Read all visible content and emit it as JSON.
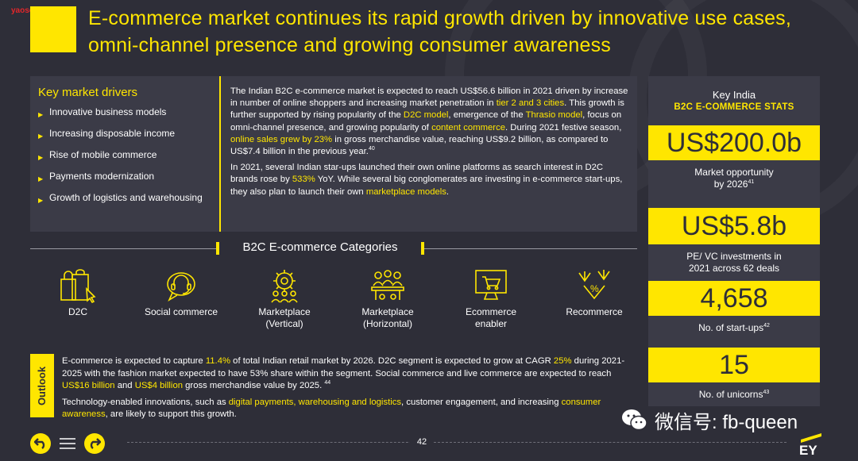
{
  "watermark": "yaosocial.com",
  "title": "E-commerce market continues its rapid growth driven by innovative use cases, omni-channel presence and growing consumer awareness",
  "drivers": {
    "heading": "Key market drivers",
    "items": [
      "Innovative business models",
      "Increasing disposable income",
      "Rise of mobile commerce",
      "Payments modernization",
      "Growth of logistics and warehousing"
    ]
  },
  "body": {
    "p1": {
      "t1": "The Indian B2C e-commerce market is expected to reach US$56.6 billion in 2021 driven by increase in number of online shoppers and increasing market penetration in ",
      "h1": "tier 2 and 3 cities",
      "t2": ". This growth is further supported by rising popularity of the ",
      "h2": "D2C model",
      "t3": ", emergence of the ",
      "h3": "Thrasio model",
      "t4": ", focus on omni-channel presence, and growing popularity of ",
      "h4": "content commerce",
      "t5": ". During 2021 festive season, ",
      "h5": "online sales grew by 23%",
      "t6": " in gross merchandise value, reaching US$9.2 billion, as compared to US$7.4 billion in the previous year.",
      "sup": "40"
    },
    "p2": {
      "t1": "In 2021, several Indian star-ups launched their own online platforms as search interest in D2C brands rose by ",
      "h1": "533%",
      "t2": " YoY. While several big conglomerates are investing in e-commerce start-ups, they also plan to launch their own ",
      "h2": "marketplace models",
      "t3": "."
    }
  },
  "categories": {
    "title": "B2C E-commerce Categories",
    "items": [
      {
        "label": "D2C",
        "icon": "shopping-bags-icon"
      },
      {
        "label": "Social commerce",
        "icon": "headset-chat-icon"
      },
      {
        "label": "Marketplace\n(Vertical)",
        "icon": "gear-people-icon"
      },
      {
        "label": "Marketplace\n(Horizontal)",
        "icon": "meeting-table-icon"
      },
      {
        "label": "Ecommerce\nenabler",
        "icon": "monitor-cart-icon"
      },
      {
        "label": "Recommerce",
        "icon": "arrows-percent-icon"
      }
    ]
  },
  "outlook": {
    "label": "Outlook",
    "p1": {
      "t1": "E-commerce is expected to capture ",
      "h1": "11.4%",
      "t2": " of total Indian retail market by 2026. D2C segment is expected to grow at CAGR ",
      "h2": "25%",
      "t3": " during 2021-2025 with the fashion market expected to have 53% share within the segment. Social commerce and live commerce are expected to reach ",
      "h3": "US$16 billion",
      "t4": " and ",
      "h4": "US$4 billion",
      "t5": " gross merchandise value by 2025. ",
      "sup": "44"
    },
    "p2": {
      "t1": "Technology-enabled innovations, such as ",
      "h1": "digital payments, warehousing and logistics",
      "t2": ", customer engagement, and increasing ",
      "h2": "consumer awareness",
      "t3": ", are likely to support this growth."
    }
  },
  "stats": {
    "heading_sub": "Key India",
    "heading_main": "B2C E-COMMERCE STATS",
    "items": [
      {
        "value": "US$200.0b",
        "desc": "Market opportunity\nby 2026",
        "sup": "41"
      },
      {
        "value": "US$5.8b",
        "desc": "PE/ VC investments in\n2021 across 62 deals",
        "sup": ""
      },
      {
        "value": "4,658",
        "desc": "No. of start-ups",
        "sup": "42"
      },
      {
        "value": "15",
        "desc": "No. of unicorns",
        "sup": "43"
      }
    ]
  },
  "footer": {
    "page_number": "42",
    "wechat_text": "微信号: fb-queen",
    "logo_text": "EY"
  },
  "colors": {
    "accent": "#ffe600",
    "background": "#2e2e38",
    "panel": "#3b3b47"
  }
}
